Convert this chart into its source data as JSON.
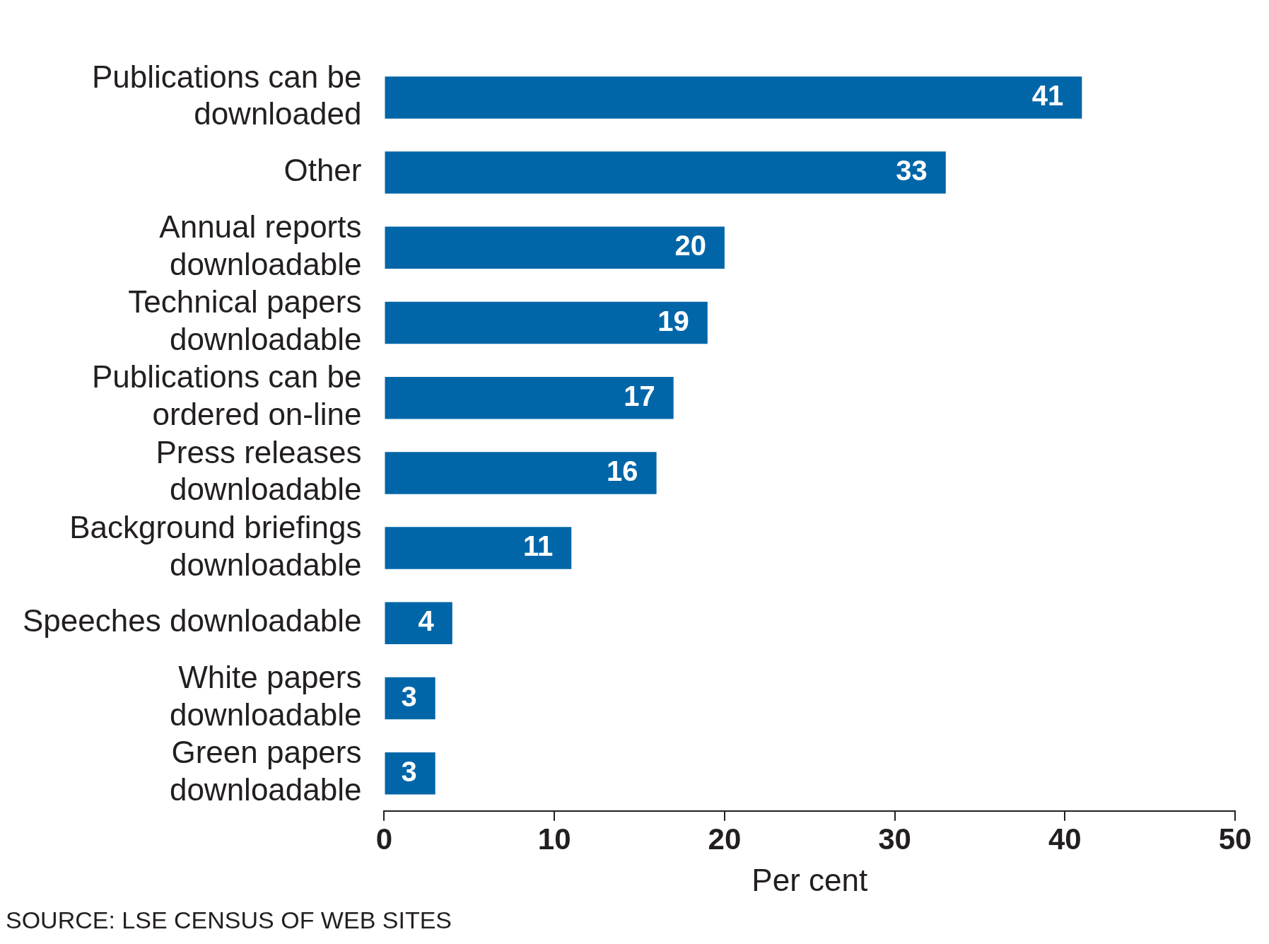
{
  "chart_data": {
    "type": "bar",
    "orientation": "horizontal",
    "categories": [
      "Publications can be downloaded",
      "Other",
      "Annual reports downloadable",
      "Technical papers downloadable",
      "Publications can be ordered on-line",
      "Press releases downloadable",
      "Background briefings downloadable",
      "Speeches downloadable",
      "White papers downloadable",
      "Green papers downloadable"
    ],
    "values": [
      41,
      33,
      20,
      19,
      17,
      16,
      11,
      4,
      3,
      3
    ],
    "color": "#0066a8",
    "xlim": [
      0,
      50
    ],
    "xticks": [
      0,
      10,
      20,
      30,
      40,
      50
    ],
    "xlabel": "Per cent",
    "data_labels": true,
    "grid": false,
    "legend": false,
    "annotations": [
      "SOURCE: LSE CENSUS OF WEB SITES"
    ]
  }
}
